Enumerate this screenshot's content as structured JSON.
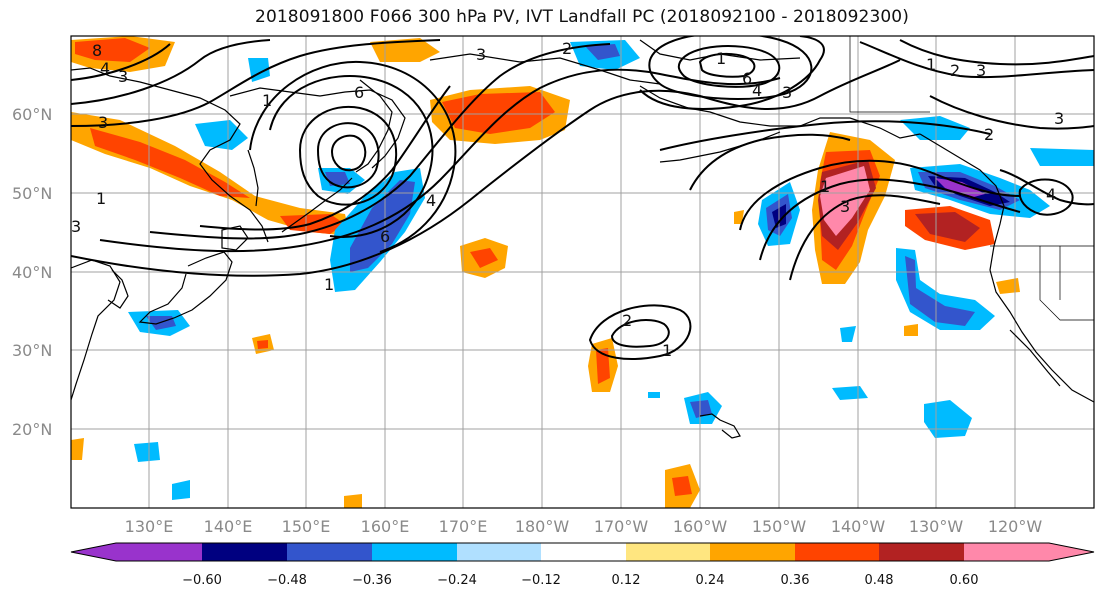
{
  "title": "2018091800 F066 300 hPa PV, IVT Landfall PC (2018092100 - 2018092300)",
  "lat_labels": [
    "60°N",
    "50°N",
    "40°N",
    "30°N",
    "20°N"
  ],
  "lon_labels": [
    "130°E",
    "140°E",
    "150°E",
    "160°E",
    "170°E",
    "180°W",
    "170°W",
    "160°W",
    "150°W",
    "140°W",
    "130°W",
    "120°W"
  ],
  "colorbar": {
    "ticks": [
      "−0.60",
      "−0.48",
      "−0.36",
      "−0.24",
      "−0.12",
      "0.12",
      "0.24",
      "0.36",
      "0.48",
      "0.60"
    ],
    "colors": [
      "#9933cc",
      "#000080",
      "#3355cc",
      "#00bbff",
      "#b0e0ff",
      "#ffffff",
      "#ffe680",
      "#ffa500",
      "#ff4400",
      "#b22222",
      "#ff88aa"
    ]
  },
  "contour_labels": [
    {
      "text": "8",
      "name": "contour-label-8-nw"
    },
    {
      "text": "4",
      "name": "contour-label-4-nw"
    },
    {
      "text": "3",
      "name": "contour-label-3-nw"
    },
    {
      "text": "3",
      "name": "contour-label-3-west"
    },
    {
      "text": "3",
      "name": "contour-label-3-north"
    },
    {
      "text": "2",
      "name": "contour-label-2-north"
    },
    {
      "text": "1",
      "name": "contour-label-1-north"
    },
    {
      "text": "6",
      "name": "contour-label-6-kam"
    },
    {
      "text": "1",
      "name": "contour-label-1-west"
    },
    {
      "text": "3",
      "name": "contour-label-3-west2"
    },
    {
      "text": "6",
      "name": "contour-label-6-low"
    },
    {
      "text": "4",
      "name": "contour-label-4-low"
    },
    {
      "text": "1",
      "name": "contour-label-1-jet"
    },
    {
      "text": "1",
      "name": "contour-label-1-aleutian"
    },
    {
      "text": "6",
      "name": "contour-label-6-aleutian"
    },
    {
      "text": "4",
      "name": "contour-label-4-aleutian"
    },
    {
      "text": "3",
      "name": "contour-label-3-aleutian"
    },
    {
      "text": "2",
      "name": "contour-label-2-subtrop"
    },
    {
      "text": "1",
      "name": "contour-label-1-subtrop"
    },
    {
      "text": "1",
      "name": "contour-label-1-gulf"
    },
    {
      "text": "3",
      "name": "contour-label-3-gulf"
    },
    {
      "text": "1",
      "name": "contour-label-1-ne"
    },
    {
      "text": "2",
      "name": "contour-label-2-ne"
    },
    {
      "text": "3",
      "name": "contour-label-3-ne"
    },
    {
      "text": "2",
      "name": "contour-label-2-east"
    },
    {
      "text": "3",
      "name": "contour-label-3-east"
    },
    {
      "text": "4",
      "name": "contour-label-4-east"
    }
  ]
}
